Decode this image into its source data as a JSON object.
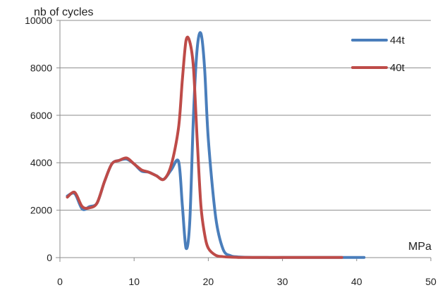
{
  "chart_data": {
    "type": "line",
    "xlabel": "MPa",
    "ylabel": "nb of cycles",
    "xlim": [
      0,
      50
    ],
    "ylim": [
      0,
      10000
    ],
    "x_ticks": [
      0,
      10,
      20,
      30,
      40,
      50
    ],
    "y_ticks": [
      0,
      2000,
      4000,
      6000,
      8000,
      10000
    ],
    "grid": "horizontal",
    "legend": "top-right",
    "series": [
      {
        "name": "44t",
        "color": "#4a7ebb",
        "x": [
          1,
          2,
          3,
          4,
          5,
          6,
          7,
          8,
          9,
          10,
          11,
          12,
          13,
          14,
          15,
          16,
          16.5,
          17,
          17.5,
          18,
          18.5,
          19,
          19.5,
          20,
          21,
          22,
          23,
          24,
          25,
          26,
          28,
          30,
          32,
          35,
          38,
          41
        ],
        "y": [
          2600,
          2700,
          2050,
          2150,
          2300,
          3200,
          3950,
          4100,
          4150,
          3950,
          3650,
          3600,
          3450,
          3300,
          3700,
          4050,
          2200,
          400,
          1500,
          6000,
          8800,
          9450,
          8000,
          5000,
          1700,
          350,
          80,
          30,
          15,
          10,
          5,
          5,
          5,
          5,
          5,
          5
        ]
      },
      {
        "name": "40t",
        "color": "#be4b48",
        "x": [
          1,
          2,
          3,
          4,
          5,
          6,
          7,
          8,
          9,
          10,
          11,
          12,
          13,
          14,
          15,
          16,
          16.5,
          17,
          17.5,
          18,
          18.5,
          19,
          19.5,
          20,
          21,
          22,
          23,
          24,
          25,
          26,
          28,
          30,
          32,
          35,
          38
        ],
        "y": [
          2550,
          2750,
          2150,
          2100,
          2300,
          3200,
          3950,
          4100,
          4200,
          3950,
          3700,
          3600,
          3450,
          3300,
          3900,
          5500,
          7500,
          9150,
          9100,
          8000,
          5000,
          2200,
          1000,
          400,
          100,
          40,
          20,
          10,
          8,
          5,
          5,
          5,
          5,
          5,
          5
        ]
      }
    ]
  }
}
